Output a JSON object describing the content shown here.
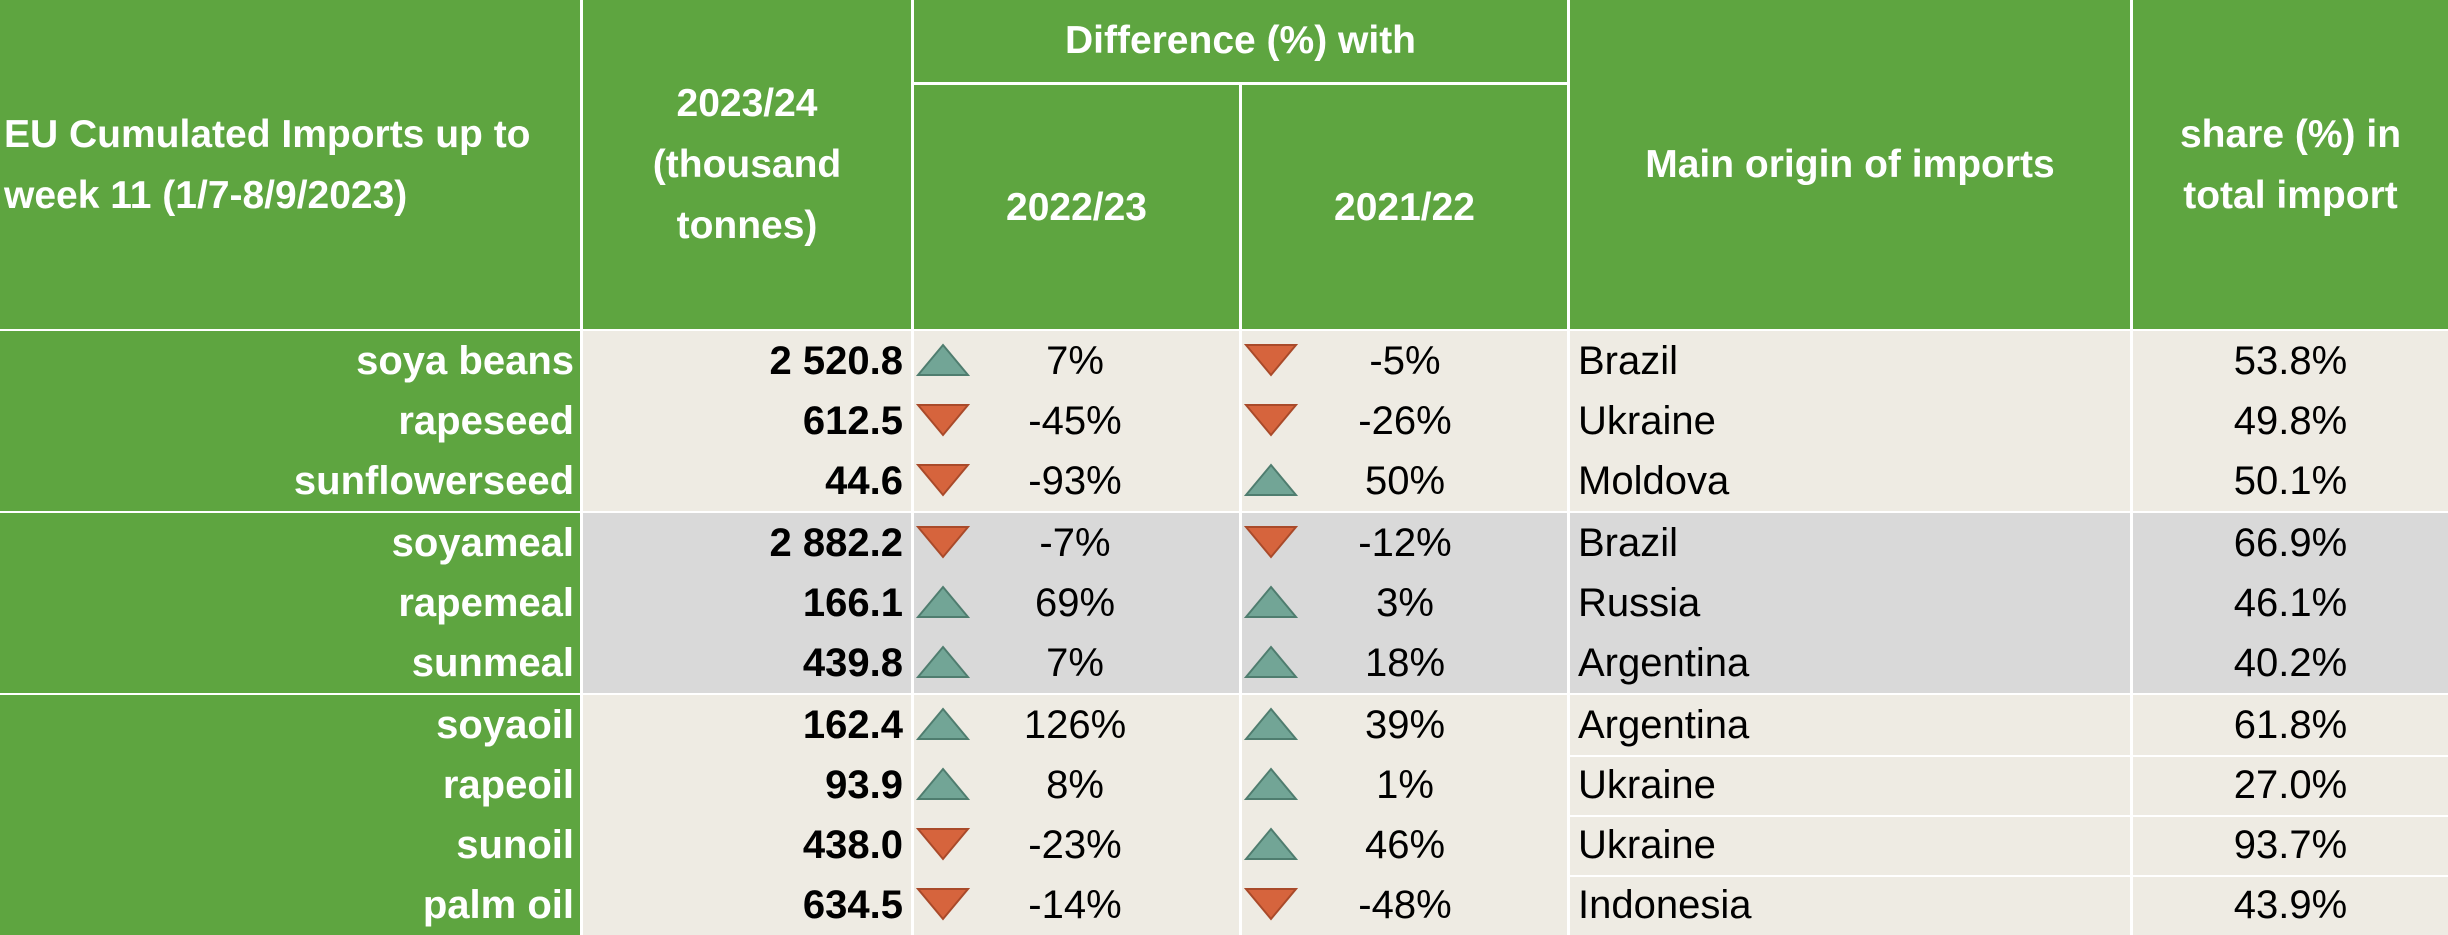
{
  "header": {
    "col1": "EU Cumulated Imports up to week 11 (1/7-8/9/2023)",
    "col2": "2023/24 (thousand tonnes)",
    "diff_group": "Difference (%) with",
    "col3": "2022/23",
    "col4": "2021/22",
    "col5": "Main origin of imports",
    "col6": "share (%) in total import"
  },
  "colors": {
    "header_green": "#5ea540",
    "row_light": "#eeebe3",
    "row_grey": "#d9d9d9",
    "up_arrow": "#72a596",
    "down_arrow": "#d6643d"
  },
  "rows": [
    {
      "product": "soya beans",
      "volume": "2 520.8",
      "d1_dir": "up",
      "d1": "7%",
      "d2_dir": "down",
      "d2": "-5%",
      "origin": "Brazil",
      "share": "53.8%",
      "group": 1
    },
    {
      "product": "rapeseed",
      "volume": "612.5",
      "d1_dir": "down",
      "d1": "-45%",
      "d2_dir": "down",
      "d2": "-26%",
      "origin": "Ukraine",
      "share": "49.8%",
      "group": 1
    },
    {
      "product": "sunflowerseed",
      "volume": "44.6",
      "d1_dir": "down",
      "d1": "-93%",
      "d2_dir": "up",
      "d2": "50%",
      "origin": "Moldova",
      "share": "50.1%",
      "group": 1
    },
    {
      "product": "soyameal",
      "volume": "2 882.2",
      "d1_dir": "down",
      "d1": "-7%",
      "d2_dir": "down",
      "d2": "-12%",
      "origin": "Brazil",
      "share": "66.9%",
      "group": 2
    },
    {
      "product": "rapemeal",
      "volume": "166.1",
      "d1_dir": "up",
      "d1": "69%",
      "d2_dir": "up",
      "d2": "3%",
      "origin": "Russia",
      "share": "46.1%",
      "group": 2
    },
    {
      "product": "sunmeal",
      "volume": "439.8",
      "d1_dir": "up",
      "d1": "7%",
      "d2_dir": "up",
      "d2": "18%",
      "origin": "Argentina",
      "share": "40.2%",
      "group": 2
    },
    {
      "product": "soyaoil",
      "volume": "162.4",
      "d1_dir": "up",
      "d1": "126%",
      "d2_dir": "up",
      "d2": "39%",
      "origin": "Argentina",
      "share": "61.8%",
      "group": 3
    },
    {
      "product": "rapeoil",
      "volume": "93.9",
      "d1_dir": "up",
      "d1": "8%",
      "d2_dir": "up",
      "d2": "1%",
      "origin": "Ukraine",
      "share": "27.0%",
      "group": 3
    },
    {
      "product": "sunoil",
      "volume": "438.0",
      "d1_dir": "down",
      "d1": "-23%",
      "d2_dir": "up",
      "d2": "46%",
      "origin": "Ukraine",
      "share": "93.7%",
      "group": 3
    },
    {
      "product": "palm oil",
      "volume": "634.5",
      "d1_dir": "down",
      "d1": "-14%",
      "d2_dir": "down",
      "d2": "-48%",
      "origin": "Indonesia",
      "share": "43.9%",
      "group": 3
    }
  ]
}
